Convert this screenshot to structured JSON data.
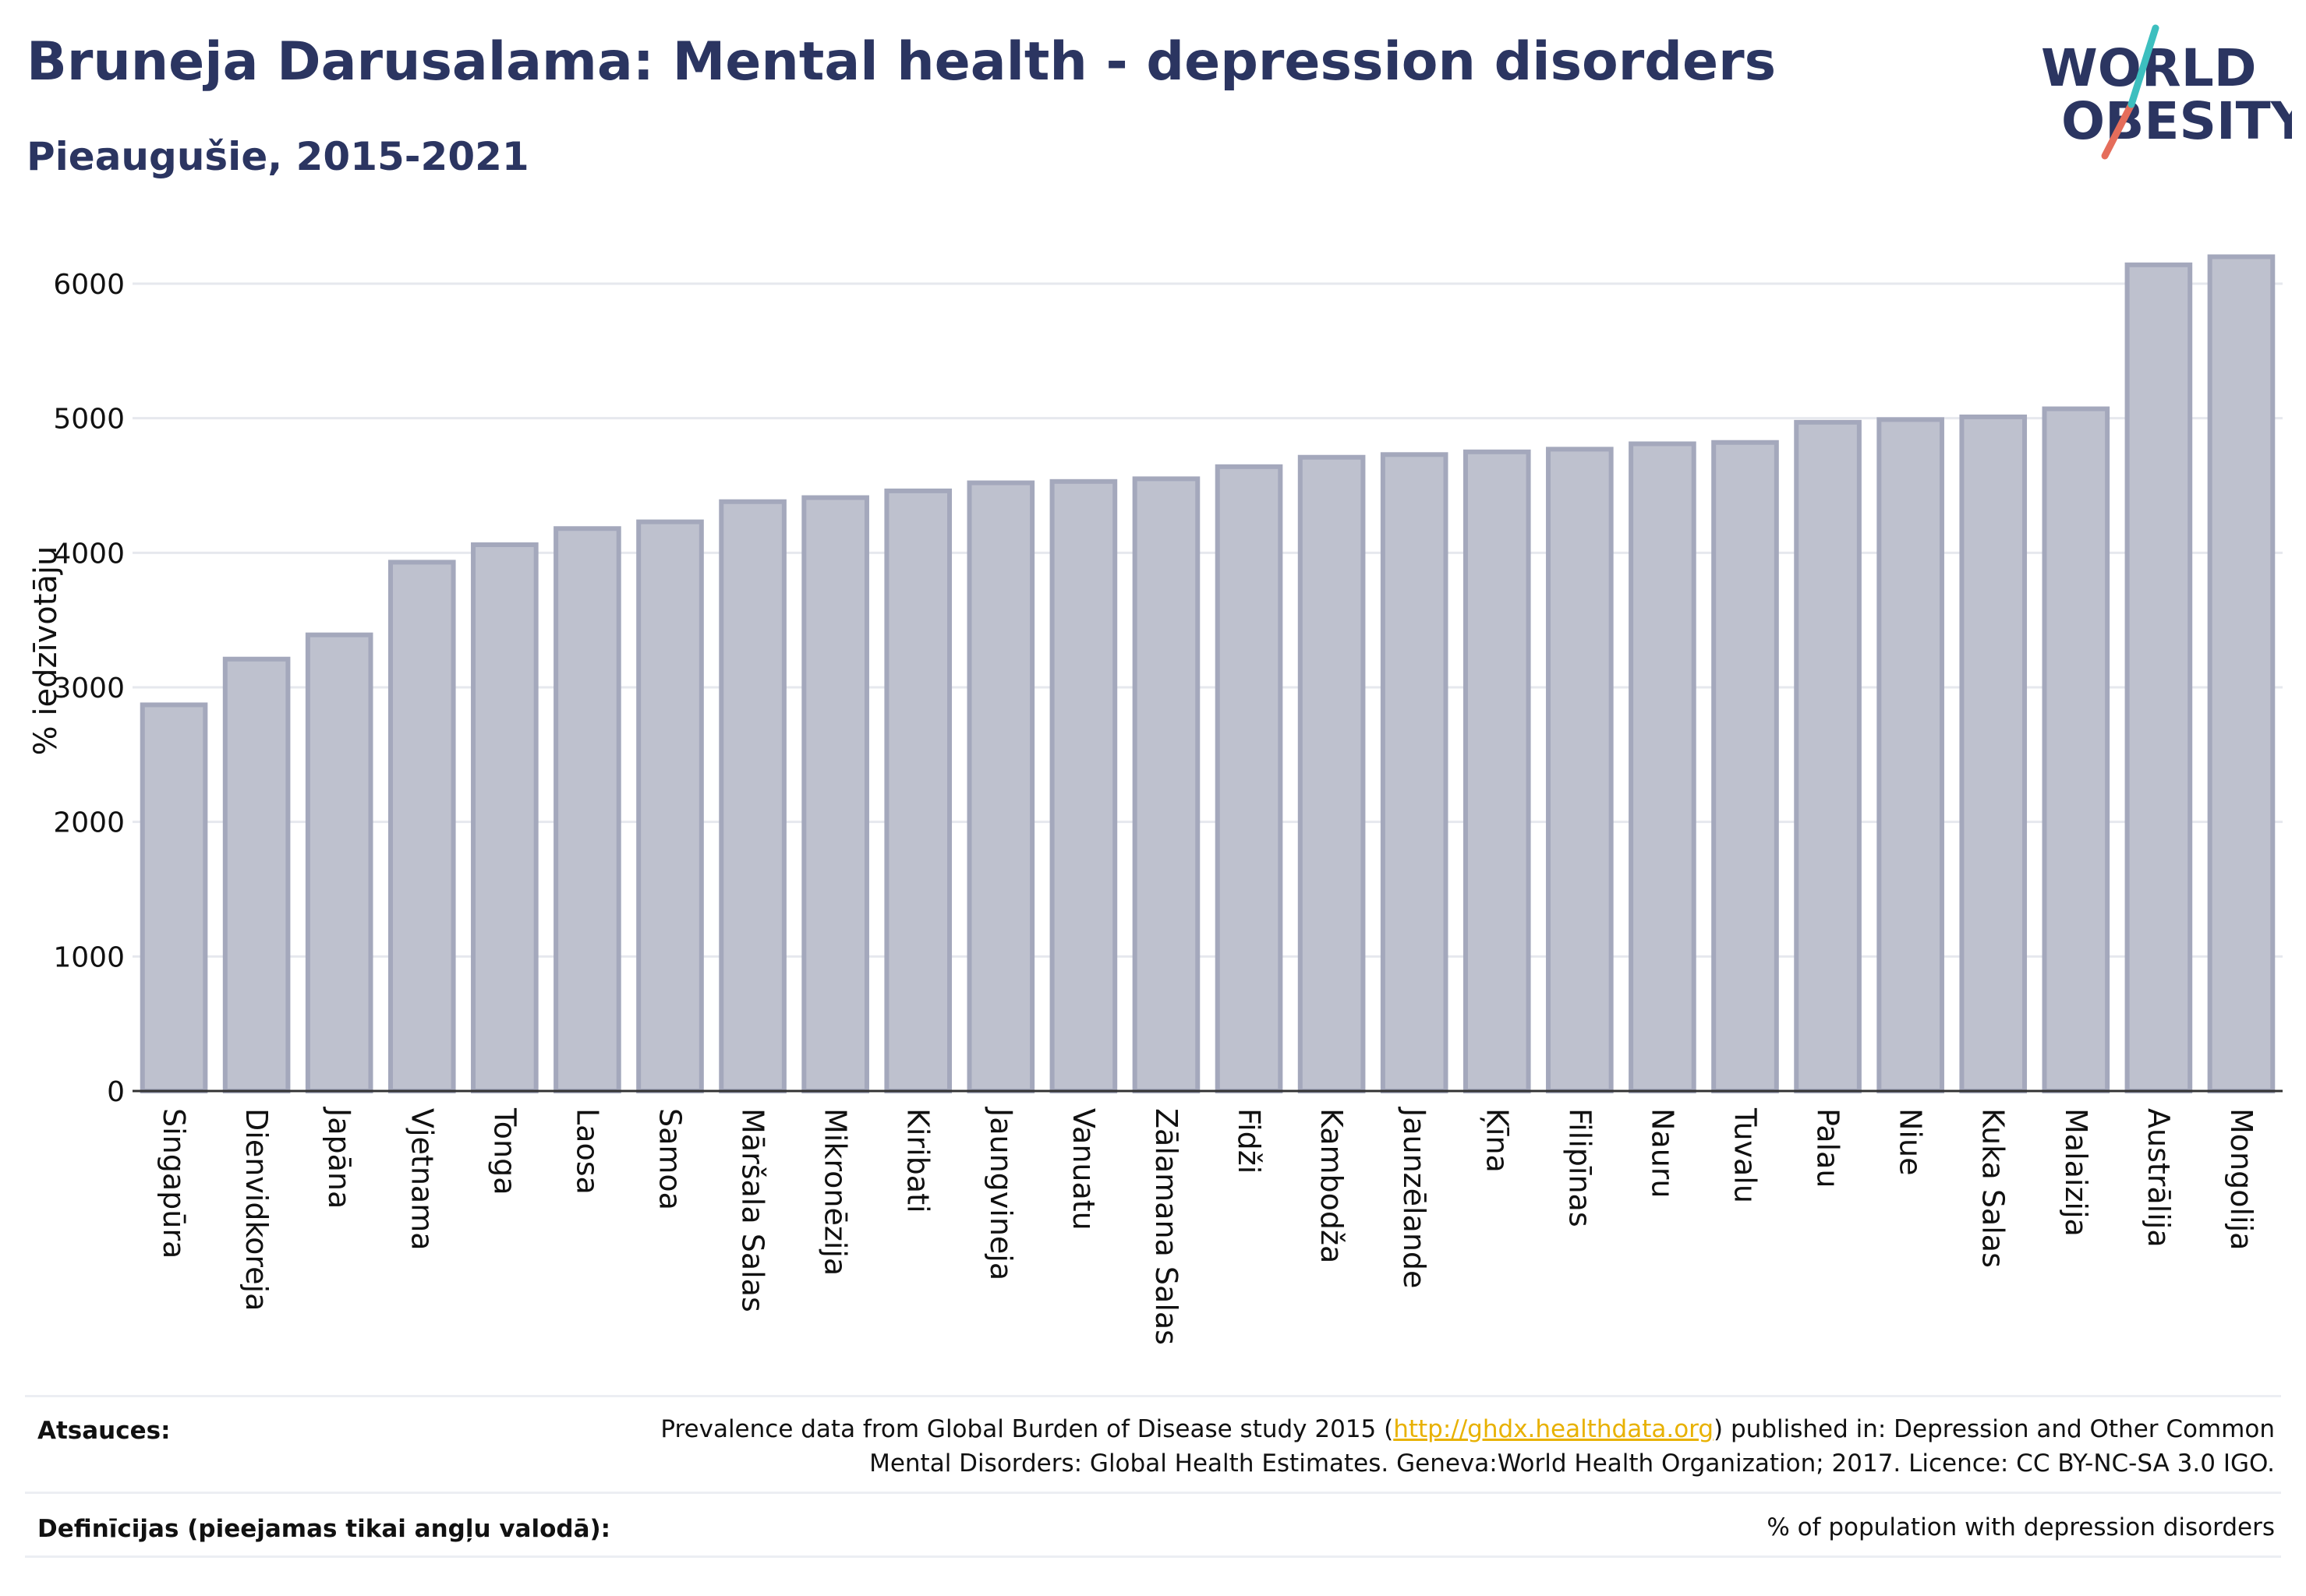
{
  "header": {
    "title": "Bruneja Darusalama: Mental health - depression disorders",
    "subtitle": "Pieaugušie, 2015-2021"
  },
  "logo": {
    "line1": "WORLD",
    "line2": "OBESITY",
    "name": "world-obesity-logo"
  },
  "colors": {
    "bar_fill": "#bec1ce",
    "bar_stroke": "#a4a8bc",
    "title": "#2b3561",
    "grid": "#e6e8ee",
    "link": "#e8b100"
  },
  "chart_data": {
    "type": "bar",
    "title": "Bruneja Darusalama: Mental health - depression disorders",
    "subtitle": "Pieaugušie, 2015-2021",
    "ylabel": "% iedzīvotāju",
    "xlabel": "",
    "ylim": [
      0,
      6500
    ],
    "yticks": [
      0,
      1000,
      2000,
      3000,
      4000,
      5000,
      6000
    ],
    "grid": true,
    "categories": [
      "Singapūra",
      "Dienvidkoreja",
      "Japāna",
      "Vjetnama",
      "Tonga",
      "Laosa",
      "Samoa",
      "Māršala Salas",
      "Mikronēzija",
      "Kiribati",
      "Jaungvineja",
      "Vanuatu",
      "Zālamana Salas",
      "Fidži",
      "Kambodža",
      "Jaunzēlande",
      "Ķīna",
      "Filipīnas",
      "Nauru",
      "Tuvalu",
      "Palau",
      "Niue",
      "Kuka Salas",
      "Malaizija",
      "Austrālija",
      "Mongolija"
    ],
    "values": [
      2870,
      3210,
      3390,
      3930,
      4060,
      4180,
      4230,
      4380,
      4410,
      4460,
      4520,
      4530,
      4550,
      4640,
      4710,
      4730,
      4750,
      4770,
      4810,
      4820,
      4970,
      4990,
      5010,
      5070,
      6140,
      6200
    ]
  },
  "footer": {
    "sources_label": "Atsauces:",
    "sources_text_1": "Prevalence data from Global Burden of Disease study 2015 (",
    "sources_link": "http://ghdx.healthdata.org",
    "sources_text_2": ") published in: Depression and Other Common",
    "sources_text_3": "Mental Disorders: Global Health Estimates. Geneva:World Health Organization; 2017. Licence: CC BY-NC-SA 3.0 IGO.",
    "definitions_label": "Definīcijas (pieejamas tikai angļu valodā):",
    "definitions_text": "% of population with depression disorders"
  }
}
